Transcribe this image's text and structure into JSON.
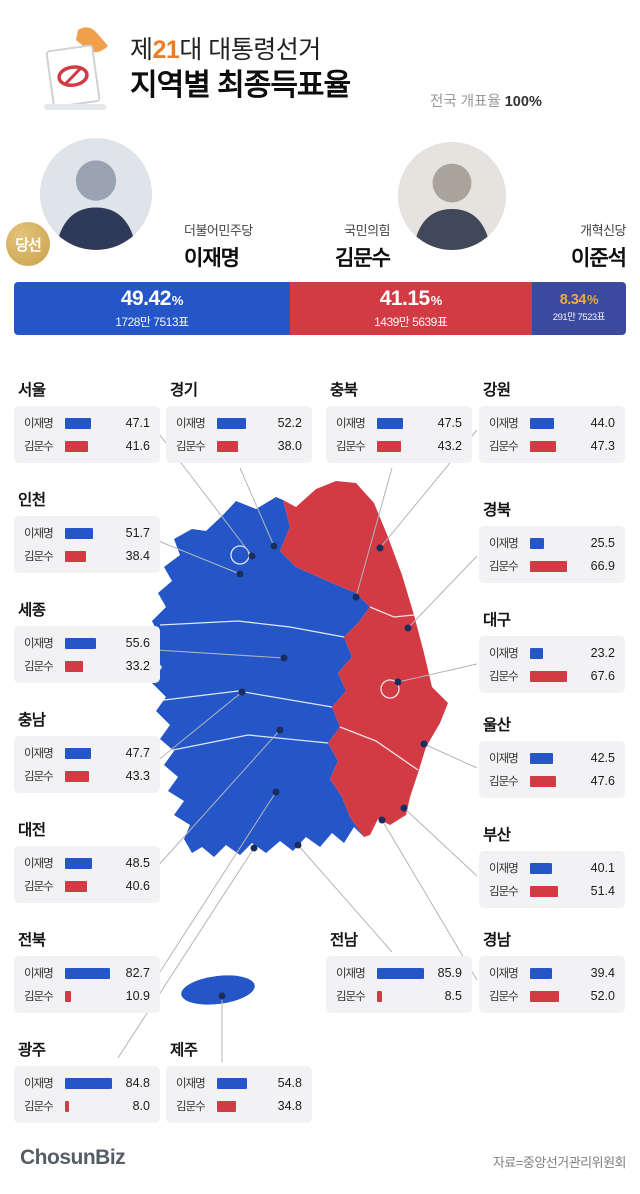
{
  "colors": {
    "blue": "#2456c8",
    "red": "#d23b44",
    "navy": "#3b4a9e",
    "orange": "#ef7b23",
    "gold": "#c9a24b",
    "pct_small": "#f2a93b"
  },
  "header": {
    "title_pre": "제",
    "title_num": "21",
    "title_post": "대 대통령선거",
    "subtitle": "지역별 최종득표율",
    "note_label": "전국 개표율",
    "note_value": "100",
    "note_unit": "%",
    "winner_badge": "당선"
  },
  "candidates": [
    {
      "party": "더불어민주당",
      "name": "이재명",
      "pct": "49.42",
      "votes": "1728만 7513표"
    },
    {
      "party": "국민의힘",
      "name": "김문수",
      "pct": "41.15",
      "votes": "1439만 5639표"
    },
    {
      "party": "개혁신당",
      "name": "이준석",
      "pct": "8.34",
      "votes": "291만 7523표"
    }
  ],
  "labels": {
    "lee": "이재명",
    "kim": "김문수",
    "pct_unit": "%"
  },
  "regions": [
    {
      "name": "서울",
      "lee": "47.1",
      "kim": "41.6"
    },
    {
      "name": "경기",
      "lee": "52.2",
      "kim": "38.0"
    },
    {
      "name": "충북",
      "lee": "47.5",
      "kim": "43.2"
    },
    {
      "name": "강원",
      "lee": "44.0",
      "kim": "47.3"
    },
    {
      "name": "인천",
      "lee": "51.7",
      "kim": "38.4"
    },
    {
      "name": "경북",
      "lee": "25.5",
      "kim": "66.9"
    },
    {
      "name": "세종",
      "lee": "55.6",
      "kim": "33.2"
    },
    {
      "name": "대구",
      "lee": "23.2",
      "kim": "67.6"
    },
    {
      "name": "충남",
      "lee": "47.7",
      "kim": "43.3"
    },
    {
      "name": "울산",
      "lee": "42.5",
      "kim": "47.6"
    },
    {
      "name": "대전",
      "lee": "48.5",
      "kim": "40.6"
    },
    {
      "name": "부산",
      "lee": "40.1",
      "kim": "51.4"
    },
    {
      "name": "전북",
      "lee": "82.7",
      "kim": "10.9"
    },
    {
      "name": "전남",
      "lee": "85.9",
      "kim": "8.5"
    },
    {
      "name": "경남",
      "lee": "39.4",
      "kim": "52.0"
    },
    {
      "name": "광주",
      "lee": "84.8",
      "kim": "8.0"
    },
    {
      "name": "제주",
      "lee": "54.8",
      "kim": "34.8"
    }
  ],
  "footer": {
    "logo": "ChosunBiz",
    "source": "자료=중앙선거관리위원회"
  },
  "chart_data": {
    "type": "bar",
    "title": "제21대 대통령선거 지역별 최종득표율",
    "subtitle": "전국 개표율 100%",
    "national": {
      "categories": [
        "이재명 (더불어민주당)",
        "김문수 (국민의힘)",
        "이준석 (개혁신당)"
      ],
      "values": [
        49.42,
        41.15,
        8.34
      ],
      "votes": [
        "1728만 7513표",
        "1439만 5639표",
        "291만 7523표"
      ],
      "unit": "%",
      "winner": "이재명"
    },
    "regional": {
      "categories": [
        "서울",
        "경기",
        "충북",
        "강원",
        "인천",
        "경북",
        "세종",
        "대구",
        "충남",
        "울산",
        "대전",
        "부산",
        "전북",
        "전남",
        "경남",
        "광주",
        "제주"
      ],
      "series": [
        {
          "name": "이재명",
          "color": "#2456c8",
          "values": [
            47.1,
            52.2,
            47.5,
            44.0,
            51.7,
            25.5,
            55.6,
            23.2,
            47.7,
            42.5,
            48.5,
            40.1,
            82.7,
            85.9,
            39.4,
            84.8,
            54.8
          ]
        },
        {
          "name": "김문수",
          "color": "#d23b44",
          "values": [
            41.6,
            38.0,
            43.2,
            47.3,
            38.4,
            66.9,
            33.2,
            67.6,
            43.3,
            47.6,
            40.6,
            51.4,
            10.9,
            8.5,
            52.0,
            8.0,
            34.8
          ]
        }
      ],
      "map_colors": {
        "lee_regions": "#2456c8",
        "kim_regions": "#d23b44"
      }
    },
    "source": "자료=중앙선거관리위원회"
  }
}
